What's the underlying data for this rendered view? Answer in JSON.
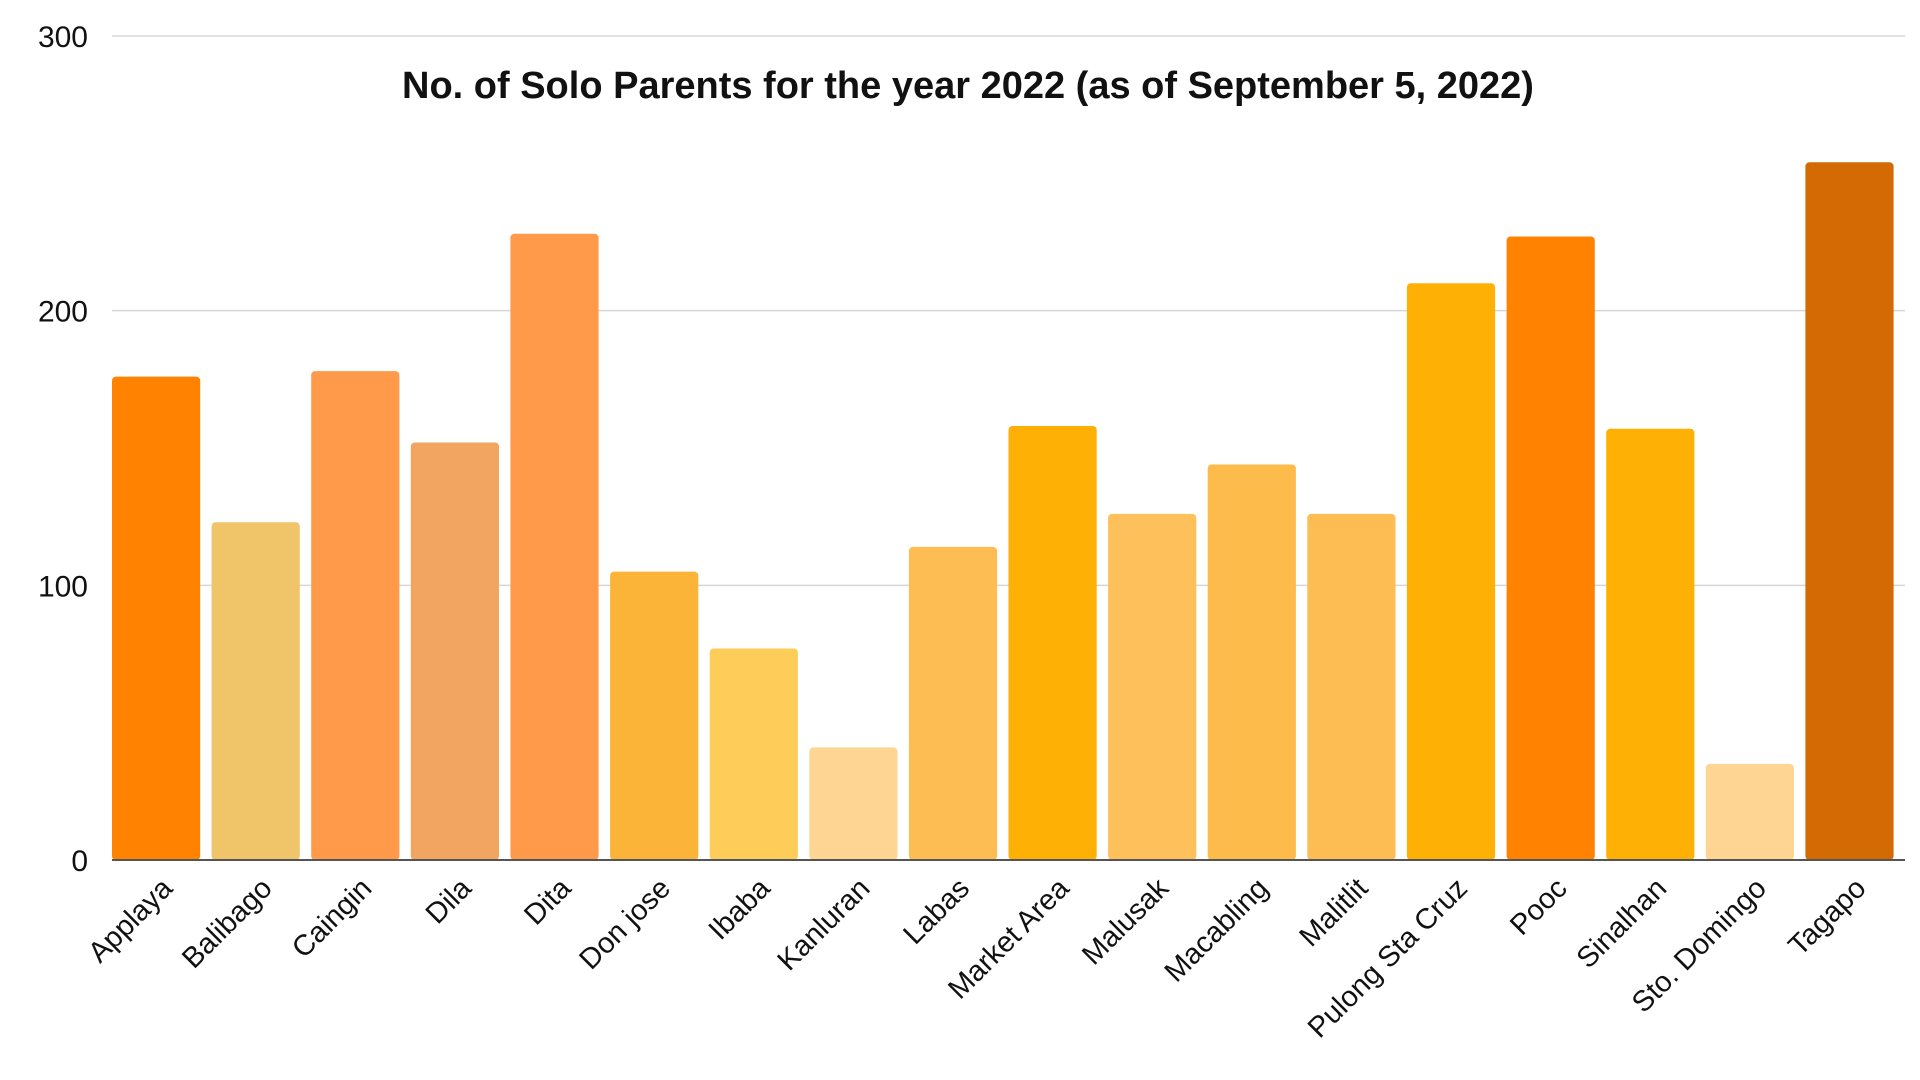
{
  "chart_data": {
    "type": "bar",
    "title": "No. of Solo Parents for the year 2022 (as of September 5, 2022)",
    "xlabel": "",
    "ylabel": "",
    "ylim": [
      0,
      300
    ],
    "yticks": [
      0,
      100,
      200,
      300
    ],
    "grid": true,
    "legend": "none",
    "categories": [
      "Applaya",
      "Balibago",
      "Caingin",
      "Dila",
      "Dita",
      "Don jose",
      "Ibaba",
      "Kanluran",
      "Labas",
      "Market Area",
      "Malusak",
      "Macabling",
      "Malitlit",
      "Pulong Sta Cruz",
      "Pooc",
      "Sinalhan",
      "Sto. Domingo",
      "Tagapo"
    ],
    "values": [
      176,
      123,
      178,
      152,
      228,
      105,
      77,
      41,
      114,
      158,
      126,
      144,
      126,
      210,
      227,
      157,
      35,
      254
    ],
    "colors": [
      "#ff8200",
      "#f0c469",
      "#ff9a4a",
      "#f2a461",
      "#ff9a4a",
      "#fbb437",
      "#fecc58",
      "#ffd594",
      "#fdbd53",
      "#feb005",
      "#fec05a",
      "#fdbb4b",
      "#fdbd53",
      "#feb005",
      "#ff8200",
      "#feb005",
      "#ffd594",
      "#d46a03"
    ]
  }
}
